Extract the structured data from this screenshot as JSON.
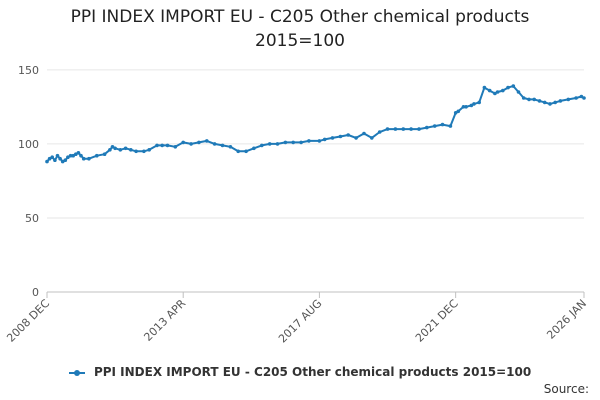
{
  "chart_data": {
    "type": "line",
    "title": "PPI INDEX IMPORT EU - C205 Other chemical products",
    "subtitle": "2015=100",
    "xlabel": "",
    "ylabel": "",
    "ylim": [
      0,
      160
    ],
    "yticks": [
      0,
      50,
      100,
      150
    ],
    "x_start": 2008.917,
    "x_end": 2026.0,
    "x_tick_labels": [
      {
        "label": "2008 DEC",
        "x": 2008.917
      },
      {
        "label": "2013 APR",
        "x": 2013.25
      },
      {
        "label": "2017 AUG",
        "x": 2017.583
      },
      {
        "label": "2021 DEC",
        "x": 2021.917
      },
      {
        "label": "2026 JAN",
        "x": 2026.0
      }
    ],
    "grid": true,
    "legend_position": "bottom",
    "series": [
      {
        "name": "PPI INDEX IMPORT EU - C205 Other chemical products 2015=100",
        "color": "#1f7ab8",
        "x": [
          2008.917,
          2009.0,
          2009.083,
          2009.167,
          2009.25,
          2009.333,
          2009.417,
          2009.5,
          2009.583,
          2009.667,
          2009.75,
          2009.833,
          2009.917,
          2010.0,
          2010.083,
          2010.25,
          2010.5,
          2010.75,
          2010.917,
          2011.0,
          2011.083,
          2011.25,
          2011.417,
          2011.583,
          2011.75,
          2012.0,
          2012.167,
          2012.417,
          2012.583,
          2012.75,
          2013.0,
          2013.25,
          2013.5,
          2013.75,
          2014.0,
          2014.25,
          2014.5,
          2014.75,
          2015.0,
          2015.25,
          2015.5,
          2015.75,
          2016.0,
          2016.25,
          2016.5,
          2016.75,
          2017.0,
          2017.25,
          2017.583,
          2017.75,
          2018.0,
          2018.25,
          2018.5,
          2018.75,
          2019.0,
          2019.25,
          2019.5,
          2019.75,
          2020.0,
          2020.25,
          2020.5,
          2020.75,
          2021.0,
          2021.25,
          2021.5,
          2021.75,
          2021.917,
          2022.0,
          2022.167,
          2022.25,
          2022.417,
          2022.5,
          2022.667,
          2022.833,
          2023.0,
          2023.167,
          2023.25,
          2023.417,
          2023.583,
          2023.75,
          2023.917,
          2024.083,
          2024.25,
          2024.417,
          2024.583,
          2024.75,
          2024.917,
          2025.083,
          2025.25,
          2025.5,
          2025.75,
          2025.917,
          2026.0
        ],
        "values": [
          88,
          90,
          91,
          89,
          92,
          90,
          88,
          89,
          91,
          92,
          92,
          93,
          94,
          92,
          90,
          90,
          92,
          93,
          96,
          98,
          97,
          96,
          97,
          96,
          95,
          95,
          96,
          99,
          99,
          99,
          98,
          101,
          100,
          101,
          102,
          100,
          99,
          98,
          95,
          95,
          97,
          99,
          100,
          100,
          101,
          101,
          101,
          102,
          102,
          103,
          104,
          105,
          106,
          104,
          107,
          104,
          108,
          110,
          110,
          110,
          110,
          110,
          111,
          112,
          113,
          112,
          121,
          122,
          125,
          125,
          126,
          127,
          128,
          138,
          136,
          134,
          135,
          136,
          138,
          139,
          135,
          131,
          130,
          130,
          129,
          128,
          127,
          128,
          129,
          130,
          131,
          132,
          131
        ]
      }
    ]
  },
  "legend": {
    "label": "PPI INDEX IMPORT EU - C205 Other chemical products 2015=100"
  },
  "source": {
    "label": "Source:"
  }
}
